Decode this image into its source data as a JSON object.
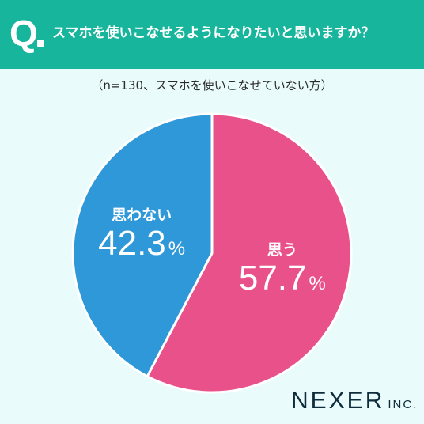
{
  "header": {
    "q_mark": "Q",
    "question": "スマホを使いこなせるようになりたいと思いますか？"
  },
  "subtitle": "（n=130、スマホを使いこなせていない方）",
  "colors": {
    "header_bg": "#17b59c",
    "background": "#e9fbfb",
    "yes": "#e9518a",
    "no": "#2e98d8"
  },
  "chart_data": {
    "type": "pie",
    "title": "スマホを使いこなせるようになりたいと思いますか？",
    "subtitle": "（n=130、スマホを使いこなせていない方）",
    "slices": [
      {
        "label": "思う",
        "value": 57.7,
        "display": "57.7",
        "color": "#e9518a"
      },
      {
        "label": "思わない",
        "value": 42.3,
        "display": "42.3",
        "color": "#2e98d8"
      }
    ],
    "unit": "%",
    "start_angle_deg": 0,
    "direction": "clockwise"
  },
  "logo": {
    "main": "NEXER",
    "suffix": "INC."
  }
}
